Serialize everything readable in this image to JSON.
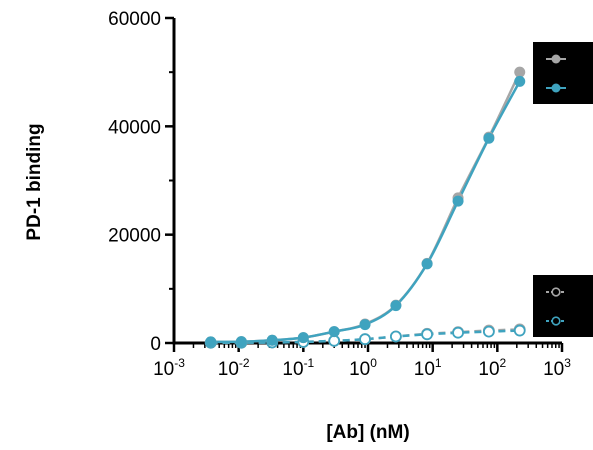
{
  "chart_data": {
    "type": "scatter",
    "title": "",
    "xlabel": "[Ab] (nM)",
    "ylabel": "PD-1 binding",
    "xscale": "log",
    "xlim": [
      0.001,
      1000
    ],
    "ylim": [
      0,
      60000
    ],
    "x_ticks": [
      {
        "base": "10",
        "exp": "-3"
      },
      {
        "base": "10",
        "exp": "-2"
      },
      {
        "base": "10",
        "exp": "-1"
      },
      {
        "base": "10",
        "exp": "0"
      },
      {
        "base": "10",
        "exp": "1"
      },
      {
        "base": "10",
        "exp": "2"
      },
      {
        "base": "10",
        "exp": "3"
      }
    ],
    "y_ticks": [
      "0",
      "20000",
      "40000",
      "60000"
    ],
    "grid": false,
    "legend": "right, black boxes, no visible text",
    "series": [
      {
        "color": "#a6a6a6",
        "marker": "filled-circle",
        "line": "solid",
        "x": [
          0.0037,
          0.011,
          0.033,
          0.1,
          0.3,
          0.9,
          2.7,
          8.2,
          24.7,
          74,
          222
        ],
        "y": [
          200,
          250,
          500,
          1000,
          2100,
          3500,
          7000,
          14700,
          26800,
          38000,
          50000
        ]
      },
      {
        "color": "#3fa3bf",
        "marker": "filled-circle",
        "line": "solid",
        "x": [
          0.0037,
          0.011,
          0.033,
          0.1,
          0.3,
          0.9,
          2.7,
          8.2,
          24.7,
          74,
          222
        ],
        "y": [
          200,
          250,
          500,
          1000,
          2100,
          3400,
          6900,
          14600,
          26200,
          37800,
          48300
        ]
      },
      {
        "color": "#a6a6a6",
        "marker": "open-circle",
        "line": "dashed",
        "x": [
          0.0037,
          0.011,
          0.033,
          0.1,
          0.3,
          0.9,
          2.7,
          8.2,
          24.7,
          74,
          222
        ],
        "y": [
          50,
          60,
          100,
          200,
          400,
          700,
          1200,
          1700,
          2000,
          2300,
          2500
        ]
      },
      {
        "color": "#3fa3bf",
        "marker": "open-circle",
        "line": "dashed",
        "x": [
          0.0037,
          0.011,
          0.033,
          0.1,
          0.3,
          0.9,
          2.7,
          8.2,
          24.7,
          74,
          222
        ],
        "y": [
          50,
          60,
          100,
          200,
          400,
          700,
          1200,
          1600,
          1900,
          2100,
          2300
        ]
      }
    ]
  }
}
